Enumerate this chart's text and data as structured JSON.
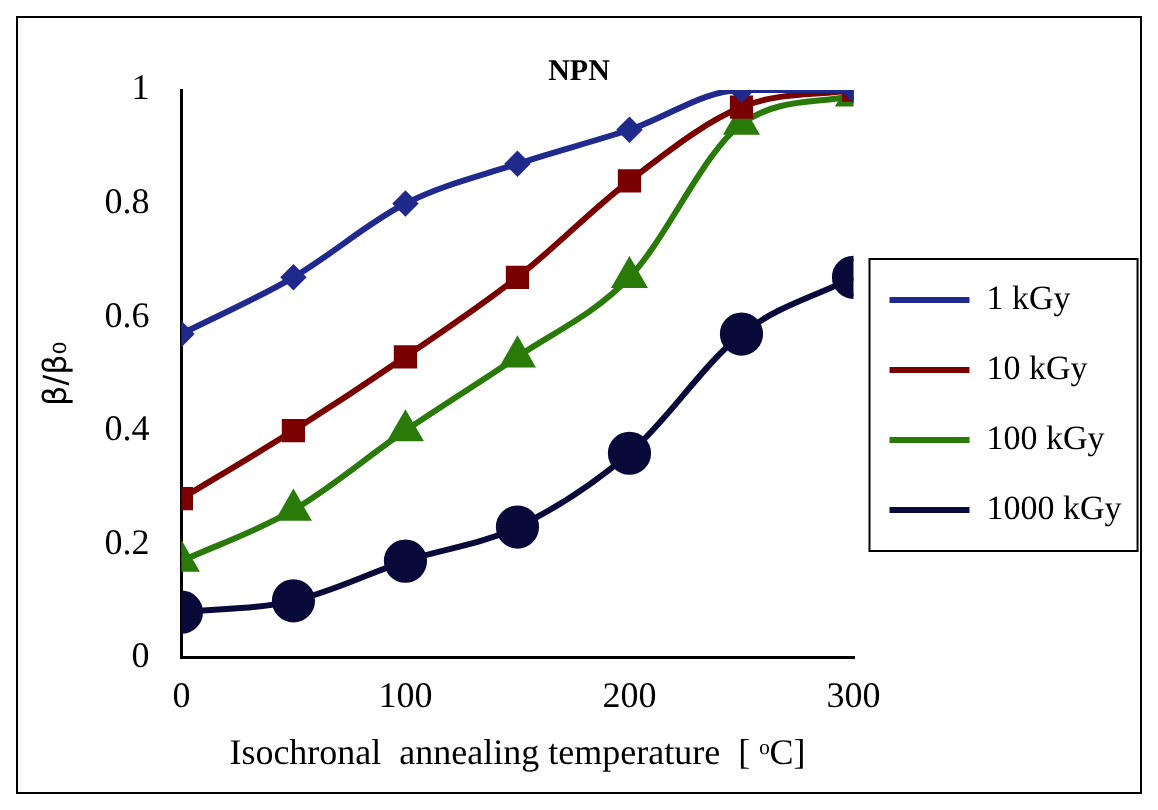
{
  "chart_data": {
    "type": "line",
    "title": "NPN",
    "xlabel": "Isochronal  annealing temperature  [ ᵒC]",
    "ylabel": "β/β₀",
    "x": [
      0,
      50,
      100,
      150,
      200,
      250,
      300
    ],
    "series": [
      {
        "name": "1 kGy",
        "color": "#1f2a8c",
        "marker": "diamond",
        "values": [
          0.57,
          0.67,
          0.8,
          0.87,
          0.93,
          1.0,
          1.0
        ]
      },
      {
        "name": "10 kGy",
        "color": "#7a0000",
        "marker": "square",
        "values": [
          0.28,
          0.4,
          0.53,
          0.67,
          0.84,
          0.97,
          1.0
        ]
      },
      {
        "name": "100 kGy",
        "color": "#2a7a0a",
        "marker": "triangle",
        "values": [
          0.17,
          0.26,
          0.4,
          0.53,
          0.67,
          0.94,
          0.99
        ]
      },
      {
        "name": "1000 kGy",
        "color": "#0a0a3a",
        "marker": "circle",
        "values": [
          0.08,
          0.1,
          0.17,
          0.23,
          0.36,
          0.57,
          0.67
        ]
      }
    ],
    "xlim": [
      0,
      300
    ],
    "xticks": [
      0,
      100,
      200,
      300
    ],
    "ylim": [
      0,
      1
    ],
    "yticks": [
      0,
      0.2,
      0.4,
      0.6,
      0.8,
      1
    ],
    "grid": false,
    "legend": "right",
    "line_style": "solid"
  }
}
